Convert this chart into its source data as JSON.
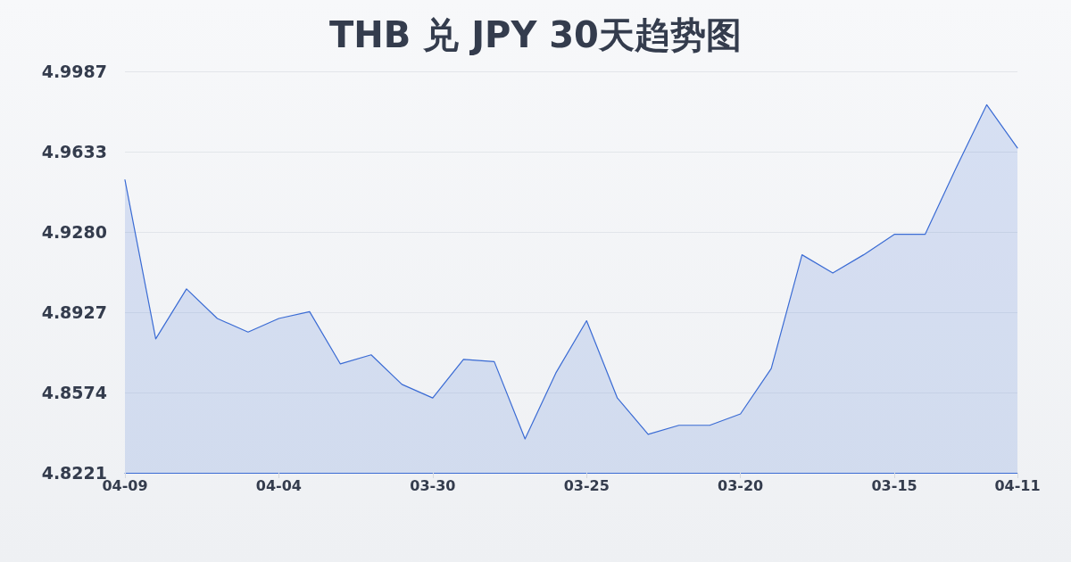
{
  "chart_data": {
    "type": "area",
    "title": "THB 兑 JPY 30天趋势图",
    "categories": [
      "04-09",
      null,
      null,
      null,
      null,
      "04-04",
      null,
      null,
      null,
      null,
      "03-30",
      null,
      null,
      null,
      null,
      "03-25",
      null,
      null,
      null,
      null,
      "03-20",
      null,
      null,
      null,
      null,
      "03-15",
      null,
      null,
      null,
      "04-11"
    ],
    "values": [
      4.951,
      4.881,
      4.903,
      4.89,
      4.884,
      4.89,
      4.893,
      4.87,
      4.874,
      4.861,
      4.855,
      4.872,
      4.871,
      4.837,
      4.866,
      4.889,
      4.855,
      4.839,
      4.843,
      4.843,
      4.848,
      4.868,
      4.918,
      4.91,
      4.918,
      4.927,
      4.927,
      4.956,
      4.984,
      4.965
    ],
    "color": "#3a6bd4",
    "ylim": [
      4.8221,
      4.9987
    ],
    "yticks": [
      4.8221,
      4.8574,
      4.8927,
      {
        "value": 4.928,
        "label": "4.9280"
      },
      4.9633,
      4.9987
    ],
    "grid": "y"
  }
}
